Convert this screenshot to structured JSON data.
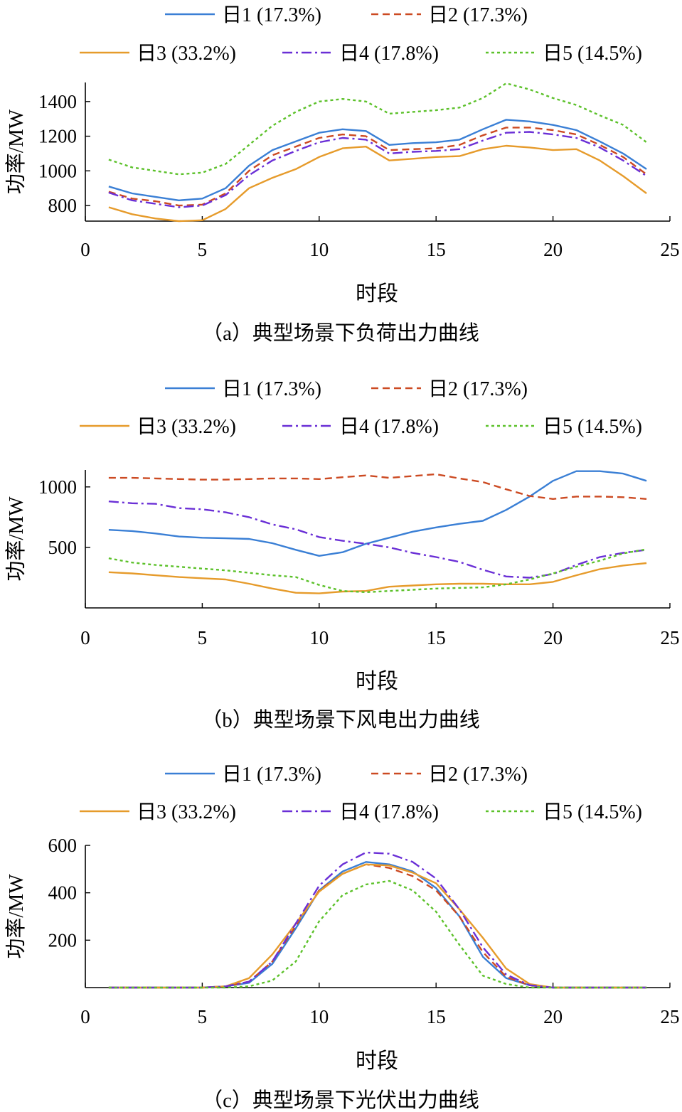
{
  "chart_data": [
    {
      "type": "line",
      "caption": "（a）典型场景下负荷出力曲线",
      "xlabel": "时段",
      "ylabel": "功率/MW",
      "xlim": [
        0,
        25
      ],
      "ylim": [
        710,
        1510
      ],
      "xticks": [
        0,
        5,
        10,
        15,
        20,
        25
      ],
      "yticks": [
        800,
        1000,
        1200,
        1400
      ],
      "x": [
        1,
        2,
        3,
        4,
        5,
        6,
        7,
        8,
        9,
        10,
        11,
        12,
        13,
        14,
        15,
        16,
        17,
        18,
        19,
        20,
        21,
        22,
        23,
        24
      ],
      "series": [
        {
          "name": "日1 (17.3%)",
          "values": [
            910,
            870,
            850,
            830,
            840,
            900,
            1030,
            1120,
            1170,
            1220,
            1240,
            1230,
            1150,
            1160,
            1165,
            1180,
            1240,
            1295,
            1285,
            1265,
            1235,
            1170,
            1100,
            1010
          ]
        },
        {
          "name": "日2 (17.3%)",
          "values": [
            880,
            840,
            825,
            800,
            805,
            870,
            1000,
            1090,
            1140,
            1190,
            1210,
            1200,
            1120,
            1125,
            1130,
            1150,
            1205,
            1250,
            1250,
            1235,
            1210,
            1150,
            1080,
            980
          ]
        },
        {
          "name": "日3 (33.2%)",
          "values": [
            790,
            750,
            725,
            710,
            715,
            780,
            900,
            960,
            1010,
            1080,
            1130,
            1140,
            1060,
            1070,
            1080,
            1085,
            1125,
            1145,
            1135,
            1120,
            1125,
            1060,
            970,
            870
          ]
        },
        {
          "name": "日4 (17.8%)",
          "values": [
            875,
            830,
            810,
            790,
            800,
            860,
            975,
            1060,
            1115,
            1165,
            1190,
            1180,
            1100,
            1110,
            1115,
            1125,
            1175,
            1220,
            1225,
            1210,
            1190,
            1135,
            1060,
            970
          ]
        },
        {
          "name": "日5 (14.5%)",
          "values": [
            1065,
            1020,
            1000,
            980,
            990,
            1040,
            1150,
            1260,
            1340,
            1400,
            1415,
            1400,
            1330,
            1340,
            1350,
            1365,
            1420,
            1505,
            1470,
            1420,
            1380,
            1320,
            1265,
            1165
          ]
        }
      ]
    },
    {
      "type": "line",
      "caption": "（b）典型场景下风电出力曲线",
      "xlabel": "时段",
      "ylabel": "功率/MW",
      "xlim": [
        0,
        25
      ],
      "ylim": [
        0,
        1140
      ],
      "xticks": [
        0,
        5,
        10,
        15,
        20,
        25
      ],
      "yticks": [
        500,
        1000
      ],
      "x": [
        1,
        2,
        3,
        4,
        5,
        6,
        7,
        8,
        9,
        10,
        11,
        12,
        13,
        14,
        15,
        16,
        17,
        18,
        19,
        20,
        21,
        22,
        23,
        24
      ],
      "series": [
        {
          "name": "日1 (17.3%)",
          "values": [
            645,
            635,
            615,
            590,
            580,
            575,
            570,
            535,
            480,
            430,
            460,
            530,
            580,
            630,
            665,
            695,
            720,
            810,
            920,
            1050,
            1130,
            1130,
            1110,
            1050
          ]
        },
        {
          "name": "日2 (17.3%)",
          "values": [
            1075,
            1075,
            1070,
            1065,
            1060,
            1060,
            1065,
            1070,
            1070,
            1065,
            1080,
            1095,
            1075,
            1090,
            1105,
            1070,
            1040,
            980,
            925,
            900,
            920,
            920,
            915,
            900
          ]
        },
        {
          "name": "日3 (33.2%)",
          "values": [
            295,
            285,
            270,
            255,
            245,
            235,
            200,
            160,
            125,
            120,
            135,
            140,
            175,
            185,
            195,
            200,
            200,
            195,
            195,
            215,
            270,
            320,
            350,
            370
          ]
        },
        {
          "name": "日4 (17.8%)",
          "values": [
            880,
            865,
            860,
            825,
            815,
            790,
            750,
            690,
            650,
            585,
            555,
            530,
            500,
            455,
            420,
            380,
            315,
            260,
            250,
            280,
            355,
            420,
            455,
            480
          ]
        },
        {
          "name": "日5 (14.5%)",
          "values": [
            410,
            375,
            355,
            340,
            325,
            310,
            290,
            270,
            255,
            190,
            140,
            130,
            140,
            150,
            160,
            165,
            170,
            195,
            235,
            285,
            340,
            390,
            450,
            485
          ]
        }
      ]
    },
    {
      "type": "line",
      "caption": "（c）典型场景下光伏出力曲线",
      "xlabel": "时段",
      "ylabel": "功率/MW",
      "xlim": [
        0,
        25
      ],
      "ylim": [
        0,
        600
      ],
      "xticks": [
        0,
        5,
        10,
        15,
        20,
        25
      ],
      "yticks": [
        200,
        400,
        600
      ],
      "x": [
        1,
        2,
        3,
        4,
        5,
        6,
        7,
        8,
        9,
        10,
        11,
        12,
        13,
        14,
        15,
        16,
        17,
        18,
        19,
        20,
        21,
        22,
        23,
        24
      ],
      "series": [
        {
          "name": "日1 (17.3%)",
          "values": [
            0,
            0,
            0,
            0,
            0,
            5,
            20,
            100,
            250,
            410,
            490,
            530,
            520,
            490,
            420,
            300,
            130,
            40,
            10,
            0,
            0,
            0,
            0,
            0
          ]
        },
        {
          "name": "日2 (17.3%)",
          "values": [
            0,
            0,
            0,
            0,
            0,
            5,
            25,
            110,
            260,
            410,
            480,
            520,
            505,
            470,
            410,
            300,
            150,
            45,
            10,
            0,
            0,
            0,
            0,
            0
          ]
        },
        {
          "name": "日3 (33.2%)",
          "values": [
            0,
            0,
            0,
            0,
            0,
            5,
            40,
            140,
            270,
            405,
            480,
            520,
            515,
            485,
            440,
            330,
            210,
            80,
            15,
            0,
            0,
            0,
            0,
            0
          ]
        },
        {
          "name": "日4 (17.8%)",
          "values": [
            0,
            0,
            0,
            0,
            0,
            5,
            25,
            110,
            270,
            430,
            520,
            570,
            565,
            530,
            460,
            330,
            170,
            55,
            10,
            0,
            0,
            0,
            0,
            0
          ]
        },
        {
          "name": "日5 (14.5%)",
          "values": [
            0,
            0,
            0,
            0,
            0,
            0,
            5,
            30,
            110,
            280,
            390,
            435,
            450,
            410,
            320,
            180,
            50,
            15,
            0,
            0,
            0,
            0,
            0,
            0
          ]
        }
      ]
    }
  ],
  "legend": {
    "items": [
      {
        "label": "日1 (17.3%)",
        "color": "#3a7fd5",
        "dash": "solid"
      },
      {
        "label": "日2 (17.3%)",
        "color": "#cc4a22",
        "dash": "dashed"
      },
      {
        "label": "日3 (33.2%)",
        "color": "#e69b2b",
        "dash": "solid"
      },
      {
        "label": "日4 (17.8%)",
        "color": "#6a2fd6",
        "dash": "dashdot"
      },
      {
        "label": "日5 (14.5%)",
        "color": "#5cc12a",
        "dash": "dotted"
      }
    ]
  }
}
